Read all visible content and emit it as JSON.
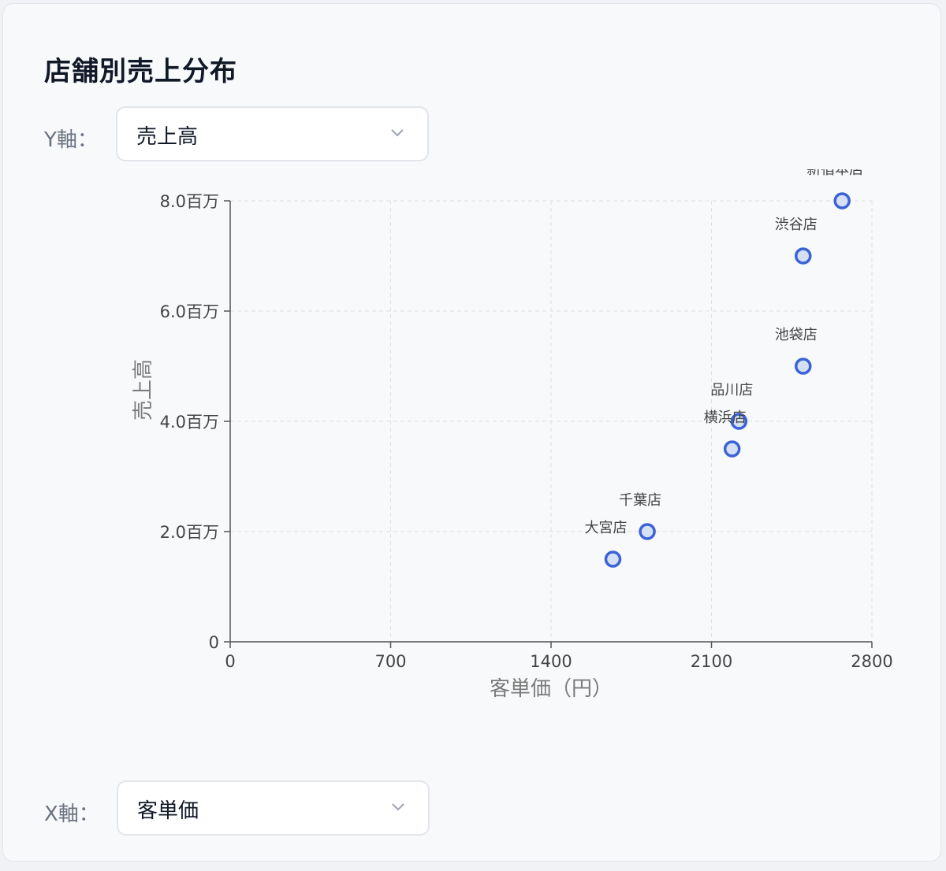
{
  "title": "店舗別売上分布",
  "y_control": {
    "label": "Y軸：",
    "value": "売上高"
  },
  "x_control": {
    "label": "X軸：",
    "value": "客単価"
  },
  "chart_data": {
    "type": "scatter",
    "xlabel": "客単価（円）",
    "ylabel": "売上高",
    "xlim": [
      0,
      2800
    ],
    "ylim": [
      0,
      8000000
    ],
    "x_ticks": [
      0,
      700,
      1400,
      2100,
      2800
    ],
    "x_tick_labels": [
      "0",
      "700",
      "1400",
      "2100",
      "2800"
    ],
    "y_ticks": [
      0,
      2000000,
      4000000,
      6000000,
      8000000
    ],
    "y_tick_labels": [
      "0",
      "2.0百万",
      "4.0百万",
      "6.0百万",
      "8.0百万"
    ],
    "grid": true,
    "point_color": "#3b63d6",
    "point_fill": "#d6e0f5",
    "points": [
      {
        "label": "新宿本店",
        "x": 2670,
        "y": 8000000
      },
      {
        "label": "渋谷店",
        "x": 2500,
        "y": 7000000
      },
      {
        "label": "池袋店",
        "x": 2500,
        "y": 5000000
      },
      {
        "label": "品川店",
        "x": 2220,
        "y": 4000000
      },
      {
        "label": "横浜店",
        "x": 2190,
        "y": 3500000
      },
      {
        "label": "千葉店",
        "x": 1820,
        "y": 2000000
      },
      {
        "label": "大宮店",
        "x": 1670,
        "y": 1500000
      }
    ]
  }
}
